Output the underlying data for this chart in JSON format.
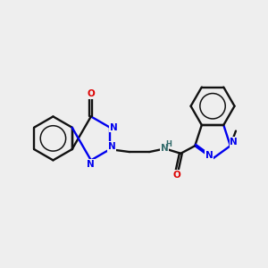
{
  "bg": "#eeeeee",
  "bc": "#111111",
  "nc": "#0000ee",
  "oc": "#dd0000",
  "nhc": "#336b6b",
  "lw": 1.7,
  "dbo": 0.022,
  "fs": 7.5,
  "xlim": [
    -0.3,
    5.8
  ],
  "ylim": [
    1.0,
    4.3
  ]
}
